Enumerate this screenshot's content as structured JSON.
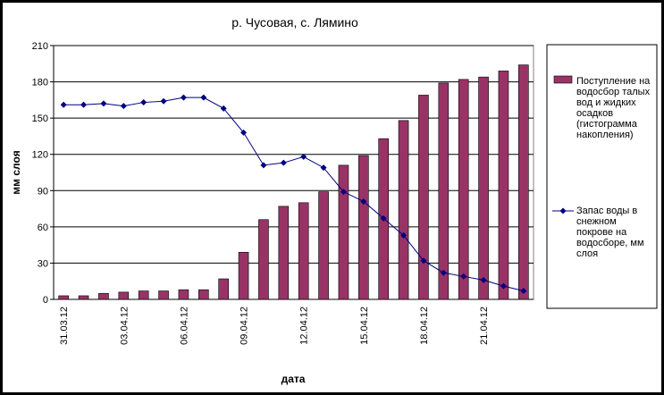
{
  "chart_data": {
    "type": "bar-line",
    "title": "р. Чусовая, с. Лямино",
    "x_label": "дата",
    "y_label": "мм слоя",
    "categories": [
      "31.03.12",
      null,
      null,
      "03.04.12",
      null,
      null,
      "06.04.12",
      null,
      null,
      "09.04.12",
      null,
      null,
      "12.04.12",
      null,
      null,
      "15.04.12",
      null,
      null,
      "18.04.12",
      null,
      null,
      "21.04.12",
      null,
      null
    ],
    "series": [
      {
        "name": "Поступление на водосбор талых вод и жидких осадков (гистограмма накопления)",
        "type": "bar",
        "color": "#993366",
        "values": [
          3,
          3,
          5,
          6,
          7,
          7,
          8,
          8,
          17,
          39,
          66,
          77,
          80,
          89,
          111,
          119,
          133,
          148,
          169,
          179,
          182,
          184,
          189,
          194
        ]
      },
      {
        "name": "Запас воды в снежном покрове на водосборе, мм слоя",
        "type": "line",
        "color": "#000080",
        "values": [
          161,
          161,
          162,
          160,
          163,
          164,
          167,
          167,
          158,
          138,
          111,
          113,
          118,
          109,
          89,
          81,
          67,
          53,
          32,
          22,
          19,
          16,
          11,
          7
        ]
      }
    ],
    "ylim": [
      0,
      210
    ],
    "yticks": [
      0,
      30,
      60,
      90,
      120,
      150,
      180,
      210
    ],
    "grid": true,
    "legend": "right"
  }
}
